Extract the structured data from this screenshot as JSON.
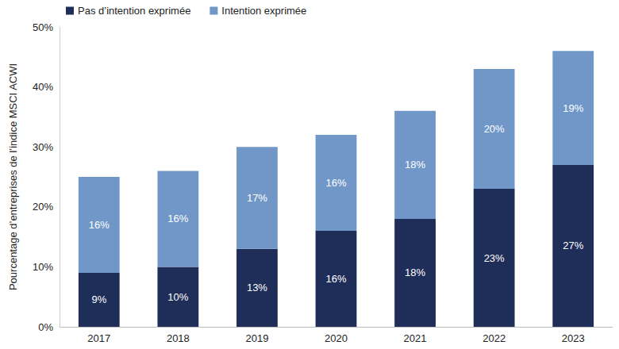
{
  "chart_data": {
    "type": "bar",
    "stacked": true,
    "data_labels": true,
    "grid": false,
    "legend": "top-left",
    "y_label": "Pourcentage d’entreprises de l’indice MSCI ACWI",
    "categories": [
      "2017",
      "2018",
      "2019",
      "2020",
      "2021",
      "2022",
      "2023"
    ],
    "series": [
      {
        "name": "Pas d’intention exprimée",
        "color": "#1f2d59",
        "values": [
          9,
          10,
          13,
          16,
          18,
          23,
          27
        ],
        "value_labels": [
          "9%",
          "10%",
          "13%",
          "16%",
          "18%",
          "23%",
          "27%"
        ]
      },
      {
        "name": "Intention exprimée",
        "color": "#7097c8",
        "values": [
          16,
          16,
          17,
          16,
          18,
          20,
          19
        ],
        "value_labels": [
          "16%",
          "16%",
          "17%",
          "16%",
          "18%",
          "20%",
          "19%"
        ]
      }
    ],
    "ylim": [
      0,
      50
    ],
    "yticks": [
      {
        "value": 0,
        "label": "0%"
      },
      {
        "value": 10,
        "label": "10%"
      },
      {
        "value": 20,
        "label": "20%"
      },
      {
        "value": 30,
        "label": "30%"
      },
      {
        "value": 40,
        "label": "40%"
      },
      {
        "value": 50,
        "label": "50%"
      }
    ]
  }
}
